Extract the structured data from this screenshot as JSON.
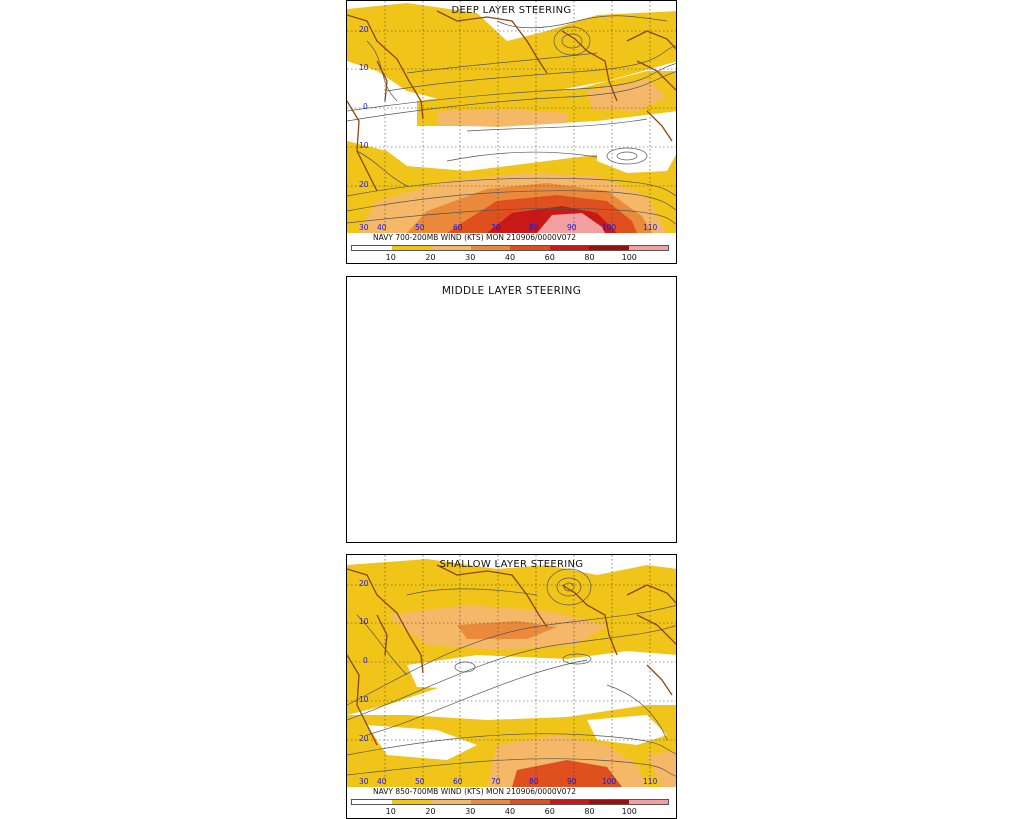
{
  "colors": {
    "yellow": "#f0c419",
    "light_orange": "#f5b868",
    "orange": "#ec8a3c",
    "dark_orange": "#e0501f",
    "red": "#c81818",
    "dark_red": "#9a0e0e",
    "pink": "#f3a0a0",
    "coast": "#8b4513",
    "streamline": "#555555",
    "grid": "#3a3a3a",
    "axis_label": "#1a1adf"
  },
  "colorbar": {
    "labels": [
      "10",
      "20",
      "30",
      "40",
      "60",
      "80",
      "100"
    ],
    "segment_colors": [
      "#ffffff",
      "#f0c419",
      "#f5b868",
      "#ec8a3c",
      "#e0501f",
      "#c81818",
      "#9a0e0e",
      "#f3a0a0"
    ]
  },
  "panels": {
    "deep": {
      "title": "DEEP LAYER STEERING",
      "caption": "NAVY 700-200MB WIND (KTS) MON 210906/0000V072",
      "lat_labels": [
        "20",
        "10",
        "0",
        "10",
        "20",
        "30"
      ],
      "lon_labels": [
        "40",
        "50",
        "60",
        "70",
        "80",
        "90",
        "100",
        "110"
      ]
    },
    "middle": {
      "title": "MIDDLE LAYER STEERING"
    },
    "shallow": {
      "title": "SHALLOW LAYER STEERING",
      "caption": "NAVY 850-700MB WIND (KTS) MON 210906/0000V072",
      "lat_labels": [
        "20",
        "10",
        "0",
        "10",
        "20",
        "30"
      ],
      "lon_labels": [
        "40",
        "50",
        "60",
        "70",
        "80",
        "90",
        "100",
        "110"
      ]
    }
  }
}
